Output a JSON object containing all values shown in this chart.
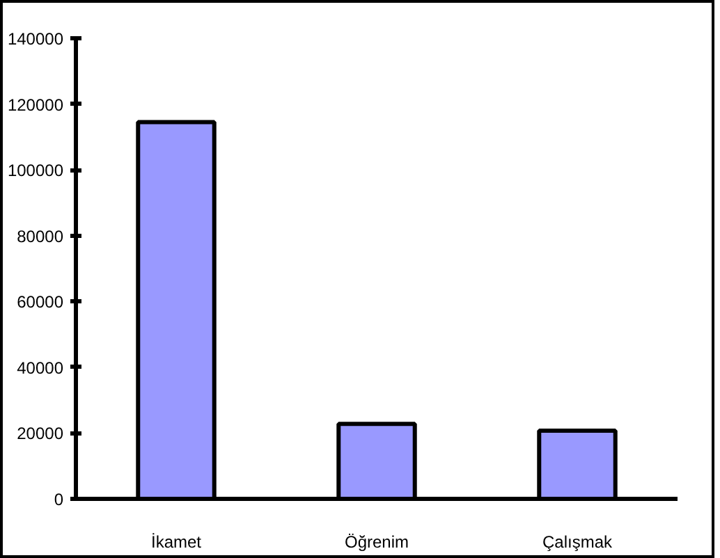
{
  "chart_data": {
    "type": "bar",
    "categories": [
      "İkamet",
      "Öğrenim",
      "Çalışmak"
    ],
    "values": [
      114500,
      22800,
      20700
    ],
    "color": "#9999ff",
    "ylim": [
      0,
      140000
    ],
    "yticks": [
      0,
      20000,
      40000,
      60000,
      80000,
      100000,
      120000,
      140000
    ],
    "grid": false
  }
}
